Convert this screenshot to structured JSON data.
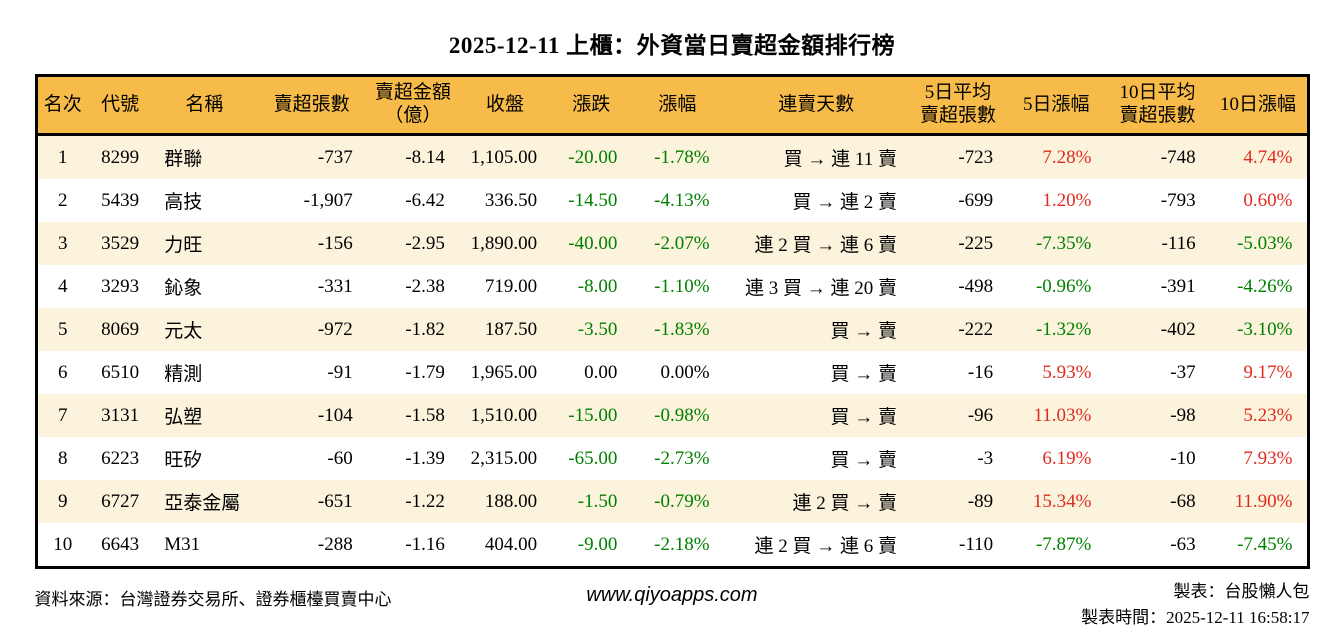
{
  "title": "2025-12-11 上櫃：外資當日賣超金額排行榜",
  "chart_data": {
    "type": "table",
    "columns": [
      {
        "lines": [
          "名次"
        ]
      },
      {
        "lines": [
          "代號"
        ]
      },
      {
        "lines": [
          "名稱"
        ]
      },
      {
        "lines": [
          "賣超張數"
        ]
      },
      {
        "lines": [
          "賣超金額",
          "（億）"
        ]
      },
      {
        "lines": [
          "收盤"
        ]
      },
      {
        "lines": [
          "漲跌"
        ]
      },
      {
        "lines": [
          "漲幅"
        ]
      },
      {
        "lines": [
          "連賣天數"
        ]
      },
      {
        "lines": [
          "5日平均",
          "賣超張數"
        ]
      },
      {
        "lines": [
          "5日漲幅"
        ]
      },
      {
        "lines": [
          "10日平均",
          "賣超張數"
        ]
      },
      {
        "lines": [
          "10日漲幅"
        ]
      }
    ],
    "column_keys": [
      "rank",
      "code",
      "name",
      "sell-qty",
      "sell-amount",
      "close",
      "change",
      "change-pct",
      "streak",
      "avg5-qty",
      "pct5",
      "avg10-qty",
      "pct10"
    ],
    "rows": [
      {
        "cells": [
          {
            "t": "1"
          },
          {
            "t": "8299"
          },
          {
            "t": "群聯"
          },
          {
            "t": "-737"
          },
          {
            "t": "-8.14"
          },
          {
            "t": "1,105.00"
          },
          {
            "t": "-20.00",
            "c": "green"
          },
          {
            "t": "-1.78%",
            "c": "green"
          },
          {
            "t": "買 → 連 11 賣"
          },
          {
            "t": "-723"
          },
          {
            "t": "7.28%",
            "c": "red"
          },
          {
            "t": "-748"
          },
          {
            "t": "4.74%",
            "c": "red"
          }
        ]
      },
      {
        "cells": [
          {
            "t": "2"
          },
          {
            "t": "5439"
          },
          {
            "t": "高技"
          },
          {
            "t": "-1,907"
          },
          {
            "t": "-6.42"
          },
          {
            "t": "336.50"
          },
          {
            "t": "-14.50",
            "c": "green"
          },
          {
            "t": "-4.13%",
            "c": "green"
          },
          {
            "t": "買 → 連 2 賣"
          },
          {
            "t": "-699"
          },
          {
            "t": "1.20%",
            "c": "red"
          },
          {
            "t": "-793"
          },
          {
            "t": "0.60%",
            "c": "red"
          }
        ]
      },
      {
        "cells": [
          {
            "t": "3"
          },
          {
            "t": "3529"
          },
          {
            "t": "力旺"
          },
          {
            "t": "-156"
          },
          {
            "t": "-2.95"
          },
          {
            "t": "1,890.00"
          },
          {
            "t": "-40.00",
            "c": "green"
          },
          {
            "t": "-2.07%",
            "c": "green"
          },
          {
            "t": "連 2 買 → 連 6 賣"
          },
          {
            "t": "-225"
          },
          {
            "t": "-7.35%",
            "c": "green"
          },
          {
            "t": "-116"
          },
          {
            "t": "-5.03%",
            "c": "green"
          }
        ]
      },
      {
        "cells": [
          {
            "t": "4"
          },
          {
            "t": "3293"
          },
          {
            "t": "鈊象"
          },
          {
            "t": "-331"
          },
          {
            "t": "-2.38"
          },
          {
            "t": "719.00"
          },
          {
            "t": "-8.00",
            "c": "green"
          },
          {
            "t": "-1.10%",
            "c": "green"
          },
          {
            "t": "連 3 買 → 連 20 賣"
          },
          {
            "t": "-498"
          },
          {
            "t": "-0.96%",
            "c": "green"
          },
          {
            "t": "-391"
          },
          {
            "t": "-4.26%",
            "c": "green"
          }
        ]
      },
      {
        "cells": [
          {
            "t": "5"
          },
          {
            "t": "8069"
          },
          {
            "t": "元太"
          },
          {
            "t": "-972"
          },
          {
            "t": "-1.82"
          },
          {
            "t": "187.50"
          },
          {
            "t": "-3.50",
            "c": "green"
          },
          {
            "t": "-1.83%",
            "c": "green"
          },
          {
            "t": "買 → 賣"
          },
          {
            "t": "-222"
          },
          {
            "t": "-1.32%",
            "c": "green"
          },
          {
            "t": "-402"
          },
          {
            "t": "-3.10%",
            "c": "green"
          }
        ]
      },
      {
        "cells": [
          {
            "t": "6"
          },
          {
            "t": "6510"
          },
          {
            "t": "精測"
          },
          {
            "t": "-91"
          },
          {
            "t": "-1.79"
          },
          {
            "t": "1,965.00"
          },
          {
            "t": "0.00"
          },
          {
            "t": "0.00%"
          },
          {
            "t": "買 → 賣"
          },
          {
            "t": "-16"
          },
          {
            "t": "5.93%",
            "c": "red"
          },
          {
            "t": "-37"
          },
          {
            "t": "9.17%",
            "c": "red"
          }
        ]
      },
      {
        "cells": [
          {
            "t": "7"
          },
          {
            "t": "3131"
          },
          {
            "t": "弘塑"
          },
          {
            "t": "-104"
          },
          {
            "t": "-1.58"
          },
          {
            "t": "1,510.00"
          },
          {
            "t": "-15.00",
            "c": "green"
          },
          {
            "t": "-0.98%",
            "c": "green"
          },
          {
            "t": "買 → 賣"
          },
          {
            "t": "-96"
          },
          {
            "t": "11.03%",
            "c": "red"
          },
          {
            "t": "-98"
          },
          {
            "t": "5.23%",
            "c": "red"
          }
        ]
      },
      {
        "cells": [
          {
            "t": "8"
          },
          {
            "t": "6223"
          },
          {
            "t": "旺矽"
          },
          {
            "t": "-60"
          },
          {
            "t": "-1.39"
          },
          {
            "t": "2,315.00"
          },
          {
            "t": "-65.00",
            "c": "green"
          },
          {
            "t": "-2.73%",
            "c": "green"
          },
          {
            "t": "買 → 賣"
          },
          {
            "t": "-3"
          },
          {
            "t": "6.19%",
            "c": "red"
          },
          {
            "t": "-10"
          },
          {
            "t": "7.93%",
            "c": "red"
          }
        ]
      },
      {
        "cells": [
          {
            "t": "9"
          },
          {
            "t": "6727"
          },
          {
            "t": "亞泰金屬"
          },
          {
            "t": "-651"
          },
          {
            "t": "-1.22"
          },
          {
            "t": "188.00"
          },
          {
            "t": "-1.50",
            "c": "green"
          },
          {
            "t": "-0.79%",
            "c": "green"
          },
          {
            "t": "連 2 買 → 賣"
          },
          {
            "t": "-89"
          },
          {
            "t": "15.34%",
            "c": "red"
          },
          {
            "t": "-68"
          },
          {
            "t": "11.90%",
            "c": "red"
          }
        ]
      },
      {
        "cells": [
          {
            "t": "10"
          },
          {
            "t": "6643"
          },
          {
            "t": "M31"
          },
          {
            "t": "-288"
          },
          {
            "t": "-1.16"
          },
          {
            "t": "404.00"
          },
          {
            "t": "-9.00",
            "c": "green"
          },
          {
            "t": "-2.18%",
            "c": "green"
          },
          {
            "t": "連 2 買 → 連 6 賣"
          },
          {
            "t": "-110"
          },
          {
            "t": "-7.87%",
            "c": "green"
          },
          {
            "t": "-63"
          },
          {
            "t": "-7.45%",
            "c": "green"
          }
        ]
      }
    ]
  },
  "footer": {
    "source": "資料來源：台灣證券交易所、證券櫃檯買賣中心",
    "website": "www.qiyoapps.com",
    "maker": "製表：台股懶人包",
    "made_time": "製表時間：2025-12-11 16:58:17"
  },
  "colors": {
    "header_bg": "#f7bb49",
    "row_alt": "#fcf3dc",
    "green": "#008000",
    "red": "#e02b20",
    "border": "#000000"
  }
}
